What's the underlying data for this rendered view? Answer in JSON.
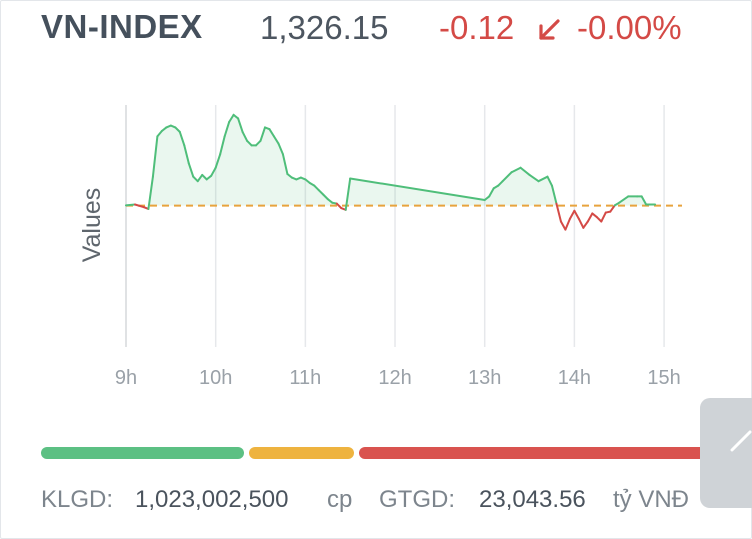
{
  "header": {
    "ticker": "VN-INDEX",
    "price": "1,326.15",
    "change": "-0.12",
    "change_icon": "arrow-down-left-icon",
    "change_pct": "-0.00%"
  },
  "chart_data": {
    "type": "line",
    "ylabel": "Values",
    "x_ticks": [
      "9h",
      "10h",
      "11h",
      "12h",
      "13h",
      "14h",
      "15h"
    ],
    "x_tick_hours": [
      9,
      10,
      11,
      12,
      13,
      14,
      15
    ],
    "xlim": [
      9,
      15.2
    ],
    "ylim": [
      1310.5,
      1337.5
    ],
    "reference": 1326.27,
    "reference_style": "dashed",
    "grid": "vertical",
    "above_color": "#4fbe7a",
    "below_color": "#d44a46",
    "reference_color": "#e8a33d",
    "series": [
      {
        "x": [
          9.0,
          9.1,
          9.2,
          9.25,
          9.3,
          9.35,
          9.4,
          9.45,
          9.5,
          9.55,
          9.6,
          9.65,
          9.7,
          9.75,
          9.8,
          9.85,
          9.9,
          9.95,
          10.0,
          10.05,
          10.1,
          10.15,
          10.2,
          10.25,
          10.3,
          10.35,
          10.4,
          10.45,
          10.5,
          10.55,
          10.6,
          10.65,
          10.7,
          10.75,
          10.8,
          10.85,
          10.9,
          10.95,
          11.0,
          11.05,
          11.1,
          11.15,
          11.2,
          11.25,
          11.3,
          11.35,
          11.4,
          11.45,
          11.5,
          13.0,
          13.05,
          13.1,
          13.15,
          13.2,
          13.3,
          13.4,
          13.5,
          13.6,
          13.7,
          13.75,
          13.8,
          13.85,
          13.9,
          13.95,
          14.0,
          14.05,
          14.1,
          14.15,
          14.2,
          14.25,
          14.3,
          14.35,
          14.4,
          14.45,
          14.5,
          14.6,
          14.7,
          14.75,
          14.8,
          14.9
        ],
        "y": [
          1326.3,
          1326.4,
          1326.1,
          1325.9,
          1329.5,
          1334.0,
          1334.6,
          1335.0,
          1335.2,
          1335.0,
          1334.5,
          1333.0,
          1331.0,
          1329.5,
          1329.0,
          1329.7,
          1329.2,
          1329.6,
          1330.5,
          1332.0,
          1334.0,
          1335.6,
          1336.4,
          1336.0,
          1334.5,
          1333.5,
          1333.0,
          1333.0,
          1333.5,
          1335.0,
          1334.8,
          1334.0,
          1333.2,
          1332.0,
          1329.8,
          1329.4,
          1329.2,
          1329.4,
          1329.2,
          1328.8,
          1328.5,
          1328.0,
          1327.5,
          1327.0,
          1326.6,
          1326.5,
          1326.0,
          1325.8,
          1329.3,
          1326.9,
          1327.3,
          1328.2,
          1328.5,
          1329.0,
          1330.0,
          1330.5,
          1329.7,
          1329.0,
          1329.5,
          1328.5,
          1326.5,
          1324.5,
          1323.6,
          1324.8,
          1325.7,
          1324.8,
          1323.8,
          1324.5,
          1325.4,
          1325.0,
          1324.5,
          1325.5,
          1325.6,
          1326.3,
          1326.6,
          1327.3,
          1327.3,
          1327.3,
          1326.4,
          1326.4
        ]
      }
    ]
  },
  "breadth_bar": [
    {
      "name": "advancing",
      "fraction": 0.31,
      "color": "#5cc083"
    },
    {
      "name": "unchanged",
      "fraction": 0.165,
      "color": "#eeb33f"
    },
    {
      "name": "declining",
      "fraction": 0.525,
      "color": "#d9534f"
    }
  ],
  "stats": {
    "volume_label": "KLGD:",
    "volume_value": "1,023,002,500",
    "volume_unit": "cp",
    "value_label": "GTGD:",
    "value_value": "23,043.56",
    "value_unit": "tỷ VNĐ"
  },
  "side_tab": {
    "icon": "expand-arrow-icon"
  }
}
